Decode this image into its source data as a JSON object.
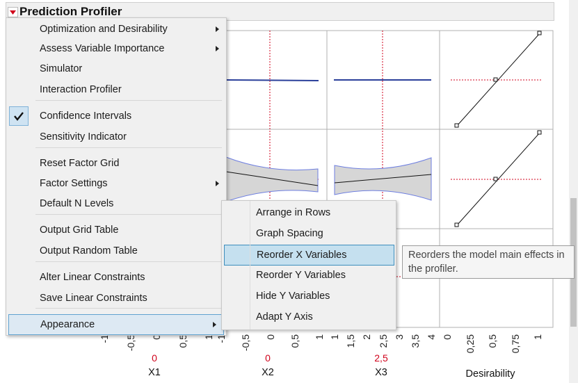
{
  "header": {
    "title": "Prediction Profiler"
  },
  "menu": {
    "groups": [
      [
        {
          "label": "Optimization and Desirability",
          "submenu": true
        },
        {
          "label": "Assess Variable Importance",
          "submenu": true
        },
        {
          "label": "Simulator"
        },
        {
          "label": "Interaction Profiler"
        }
      ],
      [
        {
          "label": "Confidence Intervals",
          "checked": true
        },
        {
          "label": "Sensitivity Indicator"
        }
      ],
      [
        {
          "label": "Reset Factor Grid"
        },
        {
          "label": "Factor Settings",
          "submenu": true
        },
        {
          "label": "Default N Levels"
        }
      ],
      [
        {
          "label": "Output Grid Table"
        },
        {
          "label": "Output Random Table"
        }
      ],
      [
        {
          "label": "Alter Linear Constraints"
        },
        {
          "label": "Save Linear Constraints"
        }
      ],
      [
        {
          "label": "Appearance",
          "submenu": true,
          "selected": true
        }
      ]
    ]
  },
  "submenu": {
    "items": [
      {
        "label": "Arrange in Rows"
      },
      {
        "label": "Graph Spacing"
      },
      {
        "label": "Reorder X Variables",
        "highlighted": true
      },
      {
        "label": "Reorder Y Variables"
      },
      {
        "label": "Hide Y Variables"
      },
      {
        "label": "Adapt Y Axis"
      }
    ]
  },
  "tooltip": {
    "lines": [
      "Reorders the model main effects in",
      "the profiler."
    ]
  },
  "factors": [
    {
      "name": "X1",
      "current": "0",
      "ticks": [
        "-1",
        "-0,5",
        "0",
        "0,5",
        "1"
      ]
    },
    {
      "name": "X2",
      "current": "0",
      "ticks": [
        "-1",
        "-0,5",
        "0",
        "0,5",
        "1"
      ]
    },
    {
      "name": "X3",
      "current": "2,5",
      "ticks": [
        "1",
        "1,5",
        "2",
        "2,5",
        "3",
        "3,5",
        "4"
      ]
    },
    {
      "name": "Desirability",
      "ticks": [
        "0",
        "0,25",
        "0,5",
        "0,75",
        "1"
      ]
    }
  ]
}
